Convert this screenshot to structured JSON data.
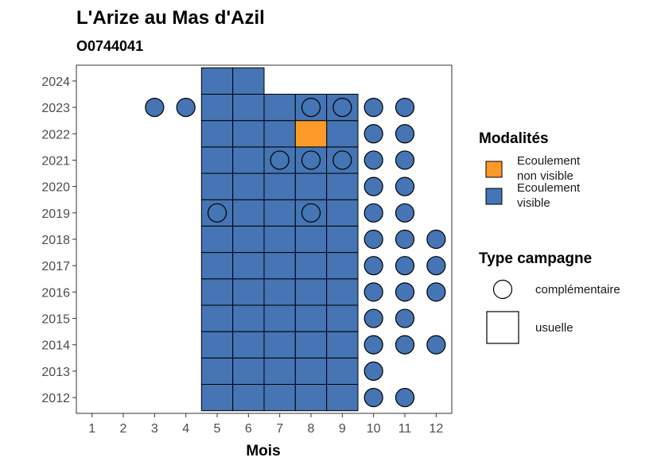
{
  "chart_data": {
    "type": "heatmap",
    "title": "L'Arize au Mas d'Azil",
    "subtitle": "O0744041",
    "xlabel": "Mois",
    "ylabel": "",
    "x_ticks": [
      1,
      2,
      3,
      4,
      5,
      6,
      7,
      8,
      9,
      10,
      11,
      12
    ],
    "y_ticks": [
      2012,
      2013,
      2014,
      2015,
      2016,
      2017,
      2018,
      2019,
      2020,
      2021,
      2022,
      2023,
      2024
    ],
    "xlim": [
      0.5,
      12.5
    ],
    "ylim": [
      2011.4,
      2024.6
    ],
    "colors": {
      "Ecoulement non visible": "#fb9a29",
      "Ecoulement visible": "#4575b4"
    },
    "legend_modalites": {
      "title": "Modalités",
      "entries": [
        {
          "lines": [
            "Ecoulement",
            "non visible"
          ],
          "color": "#fb9a29"
        },
        {
          "lines": [
            "Ecoulement",
            "visible"
          ],
          "color": "#4575b4"
        }
      ]
    },
    "legend_type": {
      "title": "Type campagne",
      "entries": [
        {
          "label": "complémentaire",
          "shape": "circle"
        },
        {
          "label": "usuelle",
          "shape": "square"
        }
      ]
    },
    "usuelle": [
      {
        "year": 2012,
        "months": [
          5,
          6,
          7,
          8,
          9
        ],
        "modalite": "Ecoulement visible"
      },
      {
        "year": 2013,
        "months": [
          5,
          6,
          7,
          8,
          9
        ],
        "modalite": "Ecoulement visible"
      },
      {
        "year": 2014,
        "months": [
          5,
          6,
          7,
          8,
          9
        ],
        "modalite": "Ecoulement visible"
      },
      {
        "year": 2015,
        "months": [
          5,
          6,
          7,
          8,
          9
        ],
        "modalite": "Ecoulement visible"
      },
      {
        "year": 2016,
        "months": [
          5,
          6,
          7,
          8,
          9
        ],
        "modalite": "Ecoulement visible"
      },
      {
        "year": 2017,
        "months": [
          5,
          6,
          7,
          8,
          9
        ],
        "modalite": "Ecoulement visible"
      },
      {
        "year": 2018,
        "months": [
          5,
          6,
          7,
          8,
          9
        ],
        "modalite": "Ecoulement visible"
      },
      {
        "year": 2019,
        "months": [
          5,
          6,
          7,
          8,
          9
        ],
        "modalite": "Ecoulement visible"
      },
      {
        "year": 2020,
        "months": [
          5,
          6,
          7,
          8,
          9
        ],
        "modalite": "Ecoulement visible"
      },
      {
        "year": 2021,
        "months": [
          5,
          6,
          7,
          8,
          9
        ],
        "modalite": "Ecoulement visible"
      },
      {
        "year": 2022,
        "months": [
          5,
          6,
          7,
          9
        ],
        "modalite": "Ecoulement visible"
      },
      {
        "year": 2022,
        "months": [
          8
        ],
        "modalite": "Ecoulement non visible"
      },
      {
        "year": 2023,
        "months": [
          5,
          6,
          7,
          8,
          9
        ],
        "modalite": "Ecoulement visible"
      },
      {
        "year": 2024,
        "months": [
          5,
          6
        ],
        "modalite": "Ecoulement visible"
      }
    ],
    "complementaire": [
      {
        "year": 2012,
        "months": [
          10,
          11
        ],
        "modalite": "Ecoulement visible"
      },
      {
        "year": 2013,
        "months": [
          10
        ],
        "modalite": "Ecoulement visible"
      },
      {
        "year": 2014,
        "months": [
          10,
          11,
          12
        ],
        "modalite": "Ecoulement visible"
      },
      {
        "year": 2015,
        "months": [
          10,
          11
        ],
        "modalite": "Ecoulement visible"
      },
      {
        "year": 2016,
        "months": [
          10,
          11,
          12
        ],
        "modalite": "Ecoulement visible"
      },
      {
        "year": 2017,
        "months": [
          10,
          11,
          12
        ],
        "modalite": "Ecoulement visible"
      },
      {
        "year": 2018,
        "months": [
          10,
          11,
          12
        ],
        "modalite": "Ecoulement visible"
      },
      {
        "year": 2019,
        "months": [
          5,
          8,
          10,
          11
        ],
        "modalite": "Ecoulement visible"
      },
      {
        "year": 2020,
        "months": [
          10,
          11
        ],
        "modalite": "Ecoulement visible"
      },
      {
        "year": 2021,
        "months": [
          7,
          8,
          9,
          10,
          11
        ],
        "modalite": "Ecoulement visible"
      },
      {
        "year": 2022,
        "months": [
          10,
          11
        ],
        "modalite": "Ecoulement visible"
      },
      {
        "year": 2023,
        "months": [
          3,
          4,
          8,
          9,
          10,
          11
        ],
        "modalite": "Ecoulement visible"
      }
    ]
  }
}
